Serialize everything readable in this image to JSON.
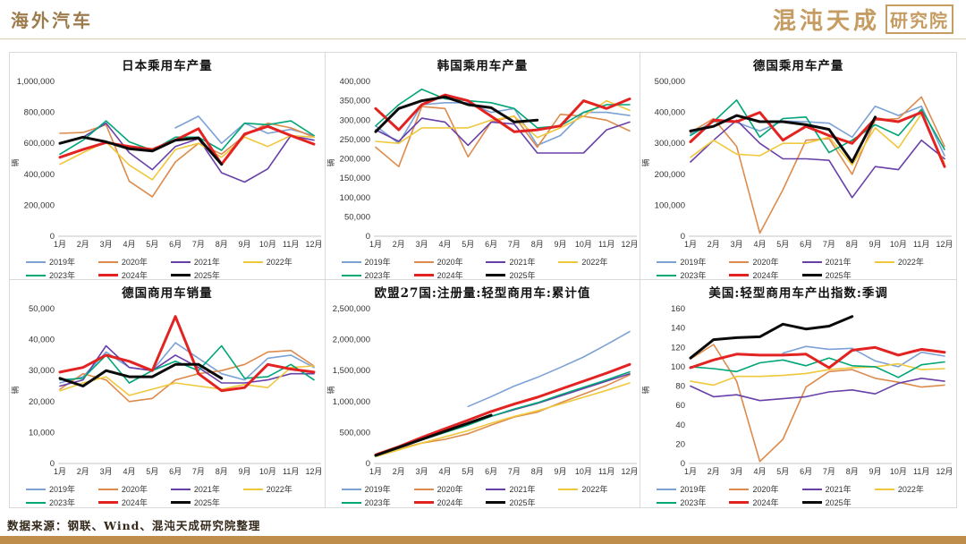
{
  "header": {
    "title": "海外汽车",
    "logo_text": "混沌天成",
    "logo_badge": "研究院"
  },
  "footer": {
    "source": "数据来源：钢联、Wind、混沌天成研究院整理"
  },
  "palette": {
    "2019年": "#7ca1d6",
    "2020年": "#dd8b4c",
    "2021年": "#6840a8",
    "2022年": "#efc83c",
    "2023年": "#00a578",
    "2024年": "#e32222",
    "2025年": "#0a0a0a"
  },
  "thick_series": [
    "2024年",
    "2025年"
  ],
  "accent_colors": {
    "header_gold": "#9c7c4c",
    "bottom_bar": "#be8c4b"
  },
  "chart_data": [
    {
      "type": "line",
      "title": "日本乘用车产量",
      "ylabel": "辆",
      "ylim": [
        0,
        1000000
      ],
      "ytick_step": 200000,
      "legend_position": "bottom",
      "categories": [
        "1月",
        "2月",
        "3月",
        "4月",
        "5月",
        "6月",
        "7月",
        "8月",
        "9月",
        "10月",
        "11月",
        "12月"
      ],
      "series": [
        {
          "name": "2019年",
          "values": [
            null,
            null,
            null,
            null,
            null,
            700000,
            775000,
            600000,
            730000,
            665000,
            690000,
            650000
          ]
        },
        {
          "name": "2020年",
          "values": [
            665000,
            670000,
            720000,
            355000,
            255000,
            480000,
            600000,
            530000,
            650000,
            730000,
            700000,
            640000
          ]
        },
        {
          "name": "2021年",
          "values": [
            600000,
            640000,
            730000,
            540000,
            430000,
            580000,
            630000,
            410000,
            350000,
            435000,
            650000,
            620000
          ]
        },
        {
          "name": "2022年",
          "values": [
            465000,
            540000,
            610000,
            460000,
            365000,
            560000,
            600000,
            510000,
            640000,
            580000,
            650000,
            640000
          ]
        },
        {
          "name": "2023年",
          "values": [
            530000,
            620000,
            745000,
            610000,
            555000,
            640000,
            640000,
            555000,
            730000,
            720000,
            745000,
            650000
          ]
        },
        {
          "name": "2024年",
          "values": [
            510000,
            560000,
            605000,
            580000,
            560000,
            620000,
            695000,
            465000,
            660000,
            710000,
            650000,
            595000
          ]
        },
        {
          "name": "2025年",
          "values": [
            600000,
            640000,
            610000,
            565000,
            550000,
            620000,
            635000,
            465000,
            null,
            null,
            null,
            null
          ]
        }
      ]
    },
    {
      "type": "line",
      "title": "韩国乘用车产量",
      "ylabel": "辆",
      "ylim": [
        0,
        400000
      ],
      "ytick_step": 50000,
      "legend_position": "bottom",
      "categories": [
        "1月",
        "2月",
        "3月",
        "4月",
        "5月",
        "6月",
        "7月",
        "8月",
        "9月",
        "10月",
        "11月",
        "12月"
      ],
      "series": [
        {
          "name": "2019年",
          "values": [
            285000,
            240000,
            340000,
            345000,
            345000,
            320000,
            330000,
            235000,
            260000,
            320000,
            320000,
            312000
          ]
        },
        {
          "name": "2020年",
          "values": [
            230000,
            180000,
            335000,
            330000,
            205000,
            295000,
            310000,
            230000,
            315000,
            310000,
            300000,
            272000
          ]
        },
        {
          "name": "2021年",
          "values": [
            275000,
            245000,
            305000,
            295000,
            235000,
            295000,
            290000,
            215000,
            215000,
            215000,
            275000,
            295000
          ]
        },
        {
          "name": "2022年",
          "values": [
            245000,
            240000,
            280000,
            280000,
            280000,
            300000,
            310000,
            255000,
            280000,
            310000,
            350000,
            325000
          ]
        },
        {
          "name": "2023年",
          "values": [
            285000,
            340000,
            380000,
            355000,
            350000,
            345000,
            330000,
            280000,
            285000,
            320000,
            340000,
            340000
          ]
        },
        {
          "name": "2024年",
          "values": [
            330000,
            275000,
            340000,
            365000,
            350000,
            310000,
            270000,
            275000,
            285000,
            350000,
            330000,
            355000
          ]
        },
        {
          "name": "2025年",
          "values": [
            270000,
            330000,
            350000,
            360000,
            340000,
            332000,
            295000,
            300000,
            null,
            null,
            null,
            null
          ]
        }
      ]
    },
    {
      "type": "line",
      "title": "德国乘用车产量",
      "ylabel": "辆",
      "ylim": [
        0,
        500000
      ],
      "ytick_step": 100000,
      "legend_position": "bottom",
      "categories": [
        "1月",
        "2月",
        "3月",
        "4月",
        "5月",
        "6月",
        "7月",
        "8月",
        "9月",
        "10月",
        "11月",
        "12月"
      ],
      "series": [
        {
          "name": "2019年",
          "values": [
            330000,
            370000,
            368000,
            340000,
            372000,
            370000,
            365000,
            320000,
            420000,
            390000,
            420000,
            260000
          ]
        },
        {
          "name": "2020年",
          "values": [
            335000,
            380000,
            290000,
            10000,
            150000,
            310000,
            315000,
            200000,
            375000,
            380000,
            450000,
            290000
          ]
        },
        {
          "name": "2021年",
          "values": [
            240000,
            310000,
            375000,
            300000,
            250000,
            250000,
            245000,
            125000,
            225000,
            215000,
            310000,
            250000
          ]
        },
        {
          "name": "2022年",
          "values": [
            255000,
            310000,
            265000,
            260000,
            300000,
            300000,
            320000,
            230000,
            350000,
            285000,
            395000,
            235000
          ]
        },
        {
          "name": "2023年",
          "values": [
            325000,
            370000,
            440000,
            320000,
            380000,
            385000,
            270000,
            310000,
            360000,
            325000,
            410000,
            280000
          ]
        },
        {
          "name": "2024年",
          "values": [
            305000,
            375000,
            370000,
            400000,
            310000,
            355000,
            325000,
            300000,
            380000,
            370000,
            400000,
            225000
          ]
        },
        {
          "name": "2025年",
          "values": [
            340000,
            355000,
            390000,
            370000,
            370000,
            360000,
            345000,
            240000,
            385000,
            null,
            null,
            null
          ]
        }
      ]
    },
    {
      "type": "line",
      "title": "德国商用车销量",
      "ylabel": "辆",
      "ylim": [
        0,
        50000
      ],
      "ytick_step": 10000,
      "legend_position": "bottom",
      "categories": [
        "1月",
        "2月",
        "3月",
        "4月",
        "5月",
        "6月",
        "7月",
        "8月",
        "9月",
        "10月",
        "11月",
        "12月"
      ],
      "series": [
        {
          "name": "2019年",
          "values": [
            26000,
            28000,
            36000,
            31000,
            30000,
            39000,
            34000,
            29000,
            27000,
            34000,
            35000,
            31000
          ]
        },
        {
          "name": "2020年",
          "values": [
            24000,
            29000,
            27000,
            20000,
            21000,
            27000,
            29000,
            30000,
            32000,
            36000,
            36500,
            31500
          ]
        },
        {
          "name": "2021年",
          "values": [
            25000,
            27000,
            38000,
            31000,
            30000,
            35000,
            31000,
            26000,
            26000,
            27000,
            29000,
            29000
          ]
        },
        {
          "name": "2022年",
          "values": [
            23500,
            26000,
            28000,
            22000,
            24000,
            26000,
            25000,
            24000,
            25500,
            24500,
            31000,
            31500
          ]
        },
        {
          "name": "2023年",
          "values": [
            27000,
            27500,
            35000,
            26000,
            30000,
            33000,
            30000,
            38000,
            27500,
            28000,
            32000,
            27000
          ]
        },
        {
          "name": "2024年",
          "values": [
            29500,
            31000,
            35000,
            33000,
            30000,
            47500,
            29000,
            23500,
            24500,
            32000,
            30500,
            29500
          ]
        },
        {
          "name": "2025年",
          "values": [
            27500,
            25000,
            30000,
            28000,
            28000,
            32000,
            32000,
            27500,
            null,
            null,
            null,
            null
          ]
        }
      ]
    },
    {
      "type": "line",
      "title": "欧盟27国:注册量:轻型商用车:累计值",
      "ylabel": "辆",
      "ylim": [
        0,
        2500000
      ],
      "ytick_step": 500000,
      "legend_position": "bottom",
      "categories": [
        "1月",
        "2月",
        "3月",
        "4月",
        "5月",
        "6月",
        "7月",
        "8月",
        "9月",
        "10月",
        "11月",
        "12月"
      ],
      "series": [
        {
          "name": "2019年",
          "values": [
            null,
            null,
            null,
            null,
            920000,
            1080000,
            1250000,
            1390000,
            1550000,
            1720000,
            1920000,
            2130000
          ]
        },
        {
          "name": "2020年",
          "values": [
            120000,
            240000,
            330000,
            390000,
            480000,
            620000,
            750000,
            830000,
            980000,
            1120000,
            1260000,
            1430000
          ]
        },
        {
          "name": "2021年",
          "values": [
            130000,
            260000,
            400000,
            520000,
            640000,
            760000,
            870000,
            970000,
            1090000,
            1210000,
            1330000,
            1450000
          ]
        },
        {
          "name": "2022年",
          "values": [
            110000,
            220000,
            330000,
            430000,
            530000,
            650000,
            760000,
            850000,
            960000,
            1070000,
            1180000,
            1300000
          ]
        },
        {
          "name": "2023年",
          "values": [
            120000,
            250000,
            380000,
            500000,
            620000,
            760000,
            880000,
            980000,
            1110000,
            1230000,
            1350000,
            1480000
          ]
        },
        {
          "name": "2024年",
          "values": [
            140000,
            270000,
            420000,
            560000,
            700000,
            840000,
            960000,
            1070000,
            1200000,
            1330000,
            1460000,
            1600000
          ]
        },
        {
          "name": "2025年",
          "values": [
            130000,
            260000,
            390000,
            520000,
            650000,
            780000,
            null,
            null,
            null,
            null,
            null,
            null
          ]
        }
      ]
    },
    {
      "type": "line",
      "title": "美国:轻型商用车产出指数:季调",
      "ylabel": "辆",
      "ylim": [
        0,
        160
      ],
      "ytick_step": 20,
      "legend_position": "bottom",
      "categories": [
        "1月",
        "2月",
        "3月",
        "4月",
        "5月",
        "6月",
        "7月",
        "8月",
        "9月",
        "10月",
        "11月",
        "12月"
      ],
      "series": [
        {
          "name": "2019年",
          "values": [
            null,
            null,
            null,
            null,
            114,
            121,
            118,
            119,
            106,
            100,
            115,
            111
          ]
        },
        {
          "name": "2020年",
          "values": [
            108,
            123,
            85,
            2,
            25,
            79,
            95,
            97,
            88,
            84,
            79,
            81
          ]
        },
        {
          "name": "2021年",
          "values": [
            80,
            69,
            71,
            65,
            67,
            69,
            74,
            76,
            72,
            83,
            88,
            85
          ]
        },
        {
          "name": "2022年",
          "values": [
            85,
            81,
            90,
            90,
            91,
            93,
            97,
            99,
            100,
            103,
            97,
            98
          ]
        },
        {
          "name": "2023年",
          "values": [
            100,
            98,
            95,
            104,
            107,
            101,
            109,
            101,
            100,
            89,
            102,
            105
          ]
        },
        {
          "name": "2024年",
          "values": [
            99,
            107,
            113,
            112,
            112,
            113,
            99,
            117,
            120,
            112,
            118,
            115
          ]
        },
        {
          "name": "2025年",
          "values": [
            109,
            128,
            130,
            131,
            144,
            139,
            142,
            152,
            null,
            null,
            null,
            null
          ]
        }
      ]
    }
  ]
}
